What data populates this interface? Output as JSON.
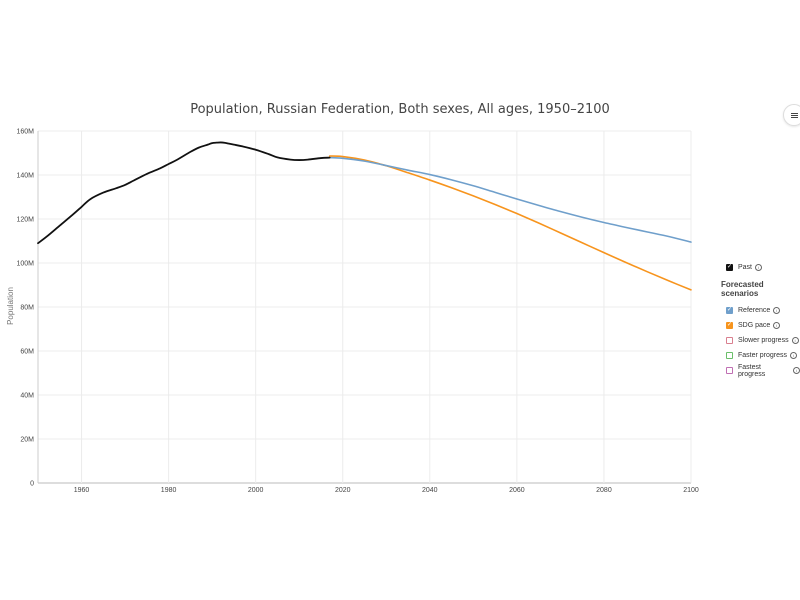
{
  "chart_data": {
    "type": "line",
    "title": "Population, Russian Federation, Both sexes, All ages, 1950–2100",
    "ylabel": "Population",
    "xlim": [
      1950,
      2100
    ],
    "ylim": [
      0,
      160000000
    ],
    "x_ticks": [
      "1960",
      "1980",
      "2000",
      "2020",
      "2040",
      "2060",
      "2080",
      "2100"
    ],
    "y_ticks": [
      "0",
      "20M",
      "40M",
      "60M",
      "80M",
      "100M",
      "120M",
      "140M",
      "160M"
    ],
    "grid": true,
    "legend_position": "right",
    "series": [
      {
        "name": "Past",
        "color": "#111111",
        "x": [
          1950,
          1952,
          1955,
          1958,
          1960,
          1962,
          1965,
          1968,
          1970,
          1972,
          1975,
          1978,
          1980,
          1982,
          1985,
          1987,
          1989,
          1990,
          1991,
          1992,
          1993,
          1994,
          1995,
          1997,
          2000,
          2003,
          2005,
          2008,
          2010,
          2012,
          2015,
          2017
        ],
        "y": [
          109000000,
          112000000,
          117000000,
          122000000,
          125500000,
          129000000,
          132000000,
          134000000,
          135500000,
          137500000,
          140500000,
          143000000,
          145000000,
          147000000,
          150500000,
          152500000,
          153800000,
          154500000,
          154700000,
          154800000,
          154600000,
          154200000,
          153800000,
          153000000,
          151500000,
          149500000,
          148000000,
          147000000,
          146800000,
          147000000,
          147700000,
          147900000
        ]
      },
      {
        "name": "Reference",
        "color": "#6f9fcb",
        "x": [
          2017,
          2020,
          2025,
          2030,
          2035,
          2040,
          2045,
          2050,
          2055,
          2060,
          2065,
          2070,
          2075,
          2080,
          2085,
          2090,
          2095,
          2100
        ],
        "y": [
          147900000,
          147600000,
          146300000,
          144300000,
          142200000,
          140200000,
          137800000,
          135100000,
          132100000,
          129100000,
          126200000,
          123400000,
          120800000,
          118400000,
          116200000,
          114100000,
          112000000,
          109500000
        ]
      },
      {
        "name": "SDG pace",
        "color": "#f7941d",
        "x": [
          2017,
          2020,
          2025,
          2030,
          2035,
          2040,
          2045,
          2050,
          2055,
          2060,
          2065,
          2070,
          2075,
          2080,
          2085,
          2090,
          2095,
          2100
        ],
        "y": [
          148600000,
          148400000,
          146800000,
          144200000,
          141000000,
          137700000,
          134200000,
          130500000,
          126600000,
          122500000,
          118200000,
          113700000,
          109200000,
          104700000,
          100300000,
          96000000,
          91800000,
          87800000
        ]
      }
    ]
  },
  "legend": {
    "past": {
      "label": "Past",
      "checked": true,
      "color": "#111111"
    },
    "heading": "Forecasted scenarios",
    "scenarios": [
      {
        "label": "Reference",
        "checked": true,
        "color": "#6f9fcb"
      },
      {
        "label": "SDG pace",
        "checked": true,
        "color": "#f7941d"
      },
      {
        "label": "Slower progress",
        "checked": false,
        "color": "#d97f8f"
      },
      {
        "label": "Faster progress",
        "checked": false,
        "color": "#6abf69"
      },
      {
        "label": "Fastest progress",
        "checked": false,
        "color": "#c06fb3"
      }
    ]
  },
  "icons": {
    "menu": "menu-icon",
    "info": "info-icon"
  }
}
